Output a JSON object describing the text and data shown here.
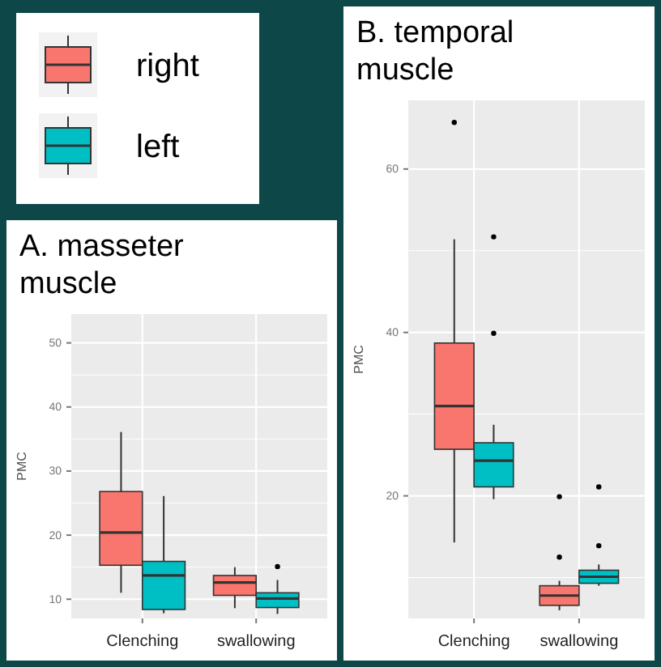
{
  "chart_data": [
    {
      "type": "box",
      "title": "A. masseter muscle",
      "ylabel": "PMC",
      "categories": [
        "Clenching",
        "swallowing"
      ],
      "ylim": [
        7,
        54.5
      ],
      "yticks": [
        10,
        20,
        30,
        40,
        50
      ],
      "grid": true,
      "legend": "top",
      "series": [
        {
          "name": "right",
          "color": "#f8766d",
          "boxes": [
            {
              "low": 11.0,
              "q1": 15.3,
              "median": 20.4,
              "q3": 26.8,
              "high": 36.1
            },
            {
              "low": 8.6,
              "q1": 10.6,
              "median": 12.6,
              "q3": 13.7,
              "high": 15.0
            }
          ]
        },
        {
          "name": "left",
          "color": "#00bfc4",
          "boxes": [
            {
              "low": 7.8,
              "q1": 8.4,
              "median": 13.7,
              "q3": 15.9,
              "high": 26.1
            },
            {
              "low": 7.7,
              "q1": 8.7,
              "median": 10.1,
              "q3": 11.0,
              "high": 13.0,
              "outliers": [
                15.1
              ]
            }
          ]
        }
      ]
    },
    {
      "type": "box",
      "title": "B. temporal muscle",
      "ylabel": "PMC",
      "categories": [
        "Clenching",
        "swallowing"
      ],
      "ylim": [
        5,
        68.4
      ],
      "yticks": [
        20,
        40,
        60
      ],
      "grid": true,
      "series": [
        {
          "color": "#f8766d",
          "boxes": [
            {
              "low": 14.3,
              "q1": 25.7,
              "median": 31.0,
              "q3": 38.7,
              "high": 51.4,
              "outliers": [
                65.7
              ]
            },
            {
              "low": 6.0,
              "q1": 6.6,
              "median": 7.8,
              "q3": 9.0,
              "high": 9.6,
              "outliers": [
                19.9,
                12.5
              ]
            }
          ]
        },
        {
          "color": "#00bfc4",
          "boxes": [
            {
              "low": 19.6,
              "q1": 21.1,
              "median": 24.3,
              "q3": 26.5,
              "high": 28.7,
              "outliers": [
                51.7,
                39.9
              ]
            },
            {
              "low": 9.0,
              "q1": 9.3,
              "median": 10.1,
              "q3": 10.9,
              "high": 11.6,
              "outliers": [
                21.1,
                13.9
              ]
            }
          ]
        }
      ]
    }
  ]
}
